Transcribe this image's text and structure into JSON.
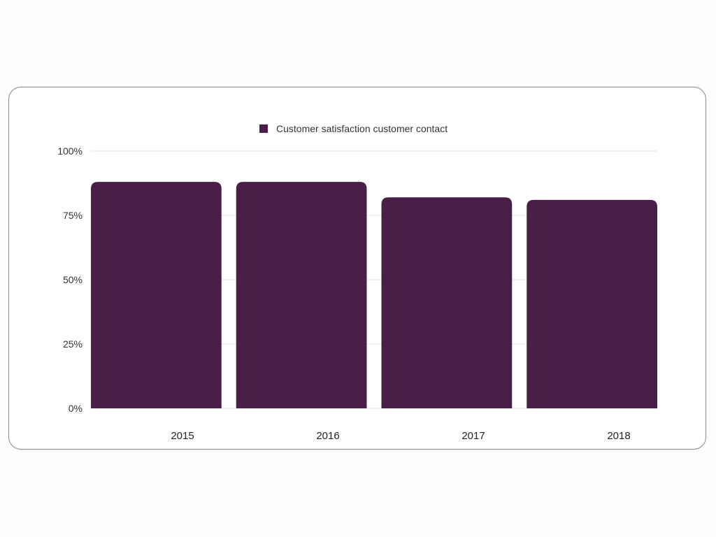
{
  "chart_data": {
    "type": "bar",
    "categories": [
      "2015",
      "2016",
      "2017",
      "2018"
    ],
    "series": [
      {
        "name": "Customer satisfaction customer contact",
        "values": [
          88,
          88,
          82,
          81
        ],
        "color": "#4a1f47"
      }
    ],
    "yticks": [
      "0%",
      "25%",
      "50%",
      "75%",
      "100%"
    ],
    "ytick_values": [
      0,
      25,
      50,
      75,
      100
    ],
    "ylim": [
      0,
      100
    ],
    "ylabel": "",
    "xlabel": "",
    "title": "",
    "grid": true,
    "gridline_color": "#e2e2e2",
    "legend_position": "top-center"
  }
}
